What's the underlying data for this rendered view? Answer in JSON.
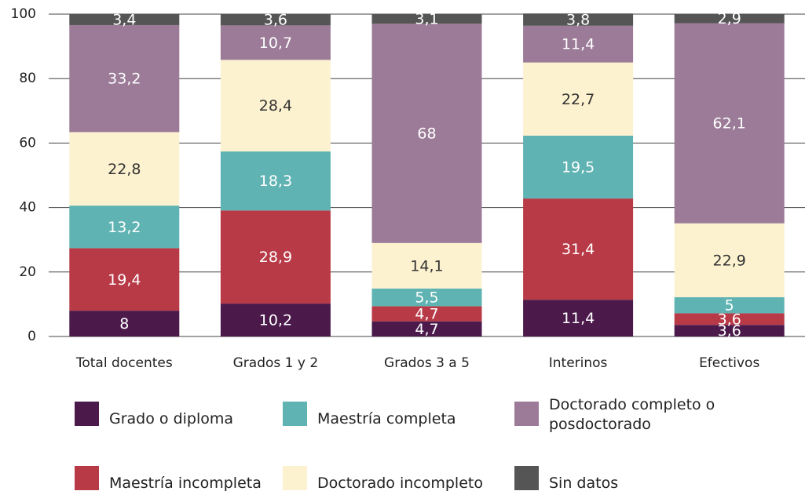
{
  "chart_data": {
    "type": "stacked_bar",
    "categories": [
      "Total docentes",
      "Grados 1 y 2",
      "Grados 3 a 5",
      "Interinos",
      "Efectivos"
    ],
    "series": [
      {
        "name": "Grado o diploma",
        "color": "#4b1a4b",
        "values": [
          8,
          10.2,
          4.7,
          11.4,
          3.6
        ],
        "value_labels": [
          "8",
          "10,2",
          "4,7",
          "11,4",
          "3,6"
        ]
      },
      {
        "name": "Maestría incompleta",
        "color": "#b93a47",
        "values": [
          19.4,
          28.9,
          4.7,
          31.4,
          3.6
        ],
        "value_labels": [
          "19,4",
          "28,9",
          "4,7",
          "31,4",
          "3,6"
        ]
      },
      {
        "name": "Maestría completa",
        "color": "#5fb3b2",
        "values": [
          13.2,
          18.3,
          5.5,
          19.5,
          5
        ],
        "value_labels": [
          "13,2",
          "18,3",
          "5,5",
          "19,5",
          "5"
        ]
      },
      {
        "name": "Doctorado incompleto",
        "color": "#fdf2cf",
        "values": [
          22.8,
          28.4,
          14.1,
          22.7,
          22.9
        ],
        "value_labels": [
          "22,8",
          "28,4",
          "14,1",
          "22,7",
          "22,9"
        ]
      },
      {
        "name": "Doctorado completo o posdoctorado",
        "color": "#9b7b97",
        "values": [
          33.2,
          10.7,
          68,
          11.4,
          62.1
        ],
        "value_labels": [
          "33,2",
          "10,7",
          "68",
          "11,4",
          "62,1"
        ]
      },
      {
        "name": "Sin datos",
        "color": "#555555",
        "values": [
          3.4,
          3.6,
          3.1,
          3.8,
          2.9
        ],
        "value_labels": [
          "3,4",
          "3,6",
          "3,1",
          "3,8",
          "2,9"
        ]
      }
    ],
    "ylim": [
      0,
      100
    ],
    "yticks": [
      0,
      20,
      40,
      60,
      80,
      100
    ],
    "grid": true
  }
}
